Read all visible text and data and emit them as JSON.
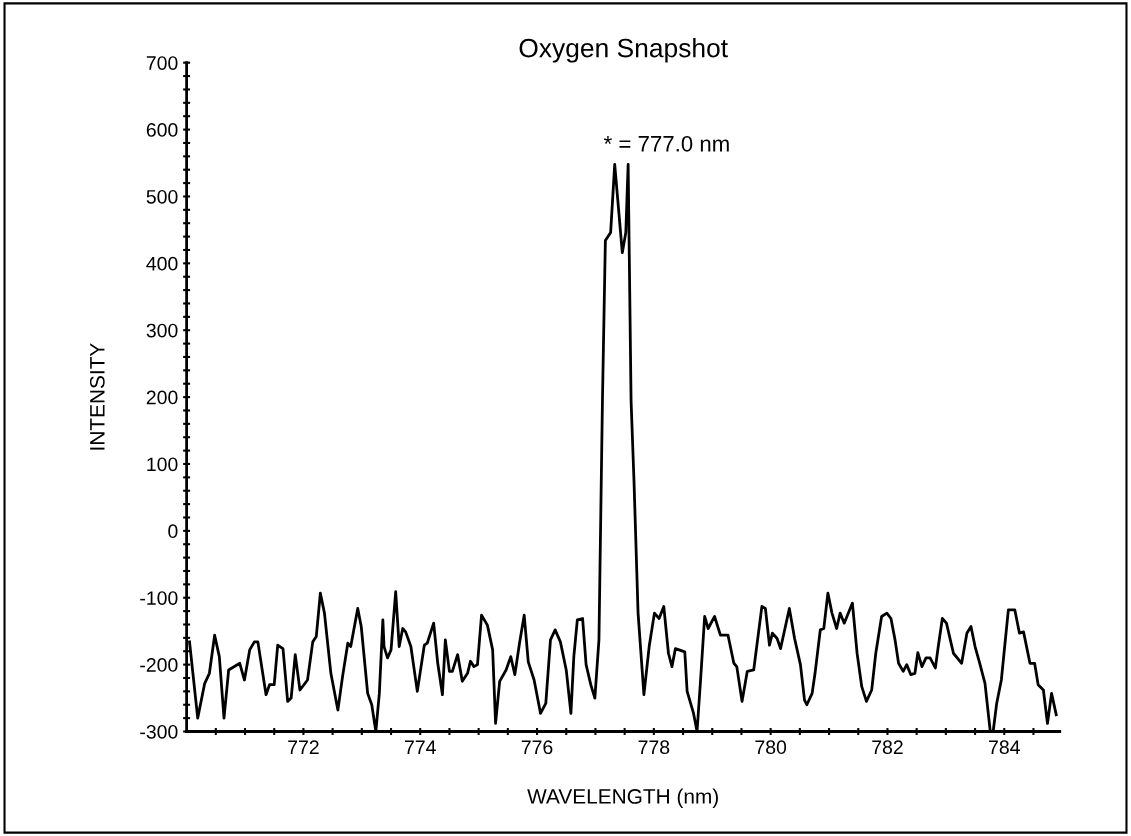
{
  "chart_data": {
    "type": "line",
    "title": "Oxygen Snapshot",
    "xlabel": "WAVELENGTH (nm)",
    "ylabel": "INTENSITY",
    "color": "#000000",
    "grid": false,
    "legend": false,
    "marker": "none",
    "line_style": "solid",
    "xlim": [
      770,
      784.95
    ],
    "ylim": [
      -300,
      700
    ],
    "xticks": [
      {
        "value": 770.5,
        "label": null
      },
      {
        "value": 771,
        "label": null
      },
      {
        "value": 771.5,
        "label": null
      },
      772,
      {
        "value": 772.5,
        "label": null
      },
      {
        "value": 773,
        "label": null
      },
      {
        "value": 773.5,
        "label": null
      },
      774,
      {
        "value": 774.5,
        "label": null
      },
      {
        "value": 775,
        "label": null
      },
      {
        "value": 775.5,
        "label": null
      },
      776,
      {
        "value": 776.5,
        "label": null
      },
      {
        "value": 777,
        "label": null
      },
      {
        "value": 777.5,
        "label": null
      },
      778,
      {
        "value": 778.5,
        "label": null
      },
      {
        "value": 779,
        "label": null
      },
      {
        "value": 779.5,
        "label": null
      },
      780,
      {
        "value": 780.5,
        "label": null
      },
      {
        "value": 781,
        "label": null
      },
      {
        "value": 781.5,
        "label": null
      },
      782,
      {
        "value": 782.5,
        "label": null
      },
      {
        "value": 783,
        "label": null
      },
      {
        "value": 783.5,
        "label": null
      },
      784,
      {
        "value": 784.5,
        "label": null
      }
    ],
    "yticks": [
      -300,
      {
        "value": -280,
        "label": null
      },
      {
        "value": -260,
        "label": null
      },
      {
        "value": -240,
        "label": null
      },
      {
        "value": -220,
        "label": null
      },
      -200,
      {
        "value": -180,
        "label": null
      },
      {
        "value": -160,
        "label": null
      },
      {
        "value": -140,
        "label": null
      },
      {
        "value": -120,
        "label": null
      },
      -100,
      {
        "value": -80,
        "label": null
      },
      {
        "value": -60,
        "label": null
      },
      {
        "value": -40,
        "label": null
      },
      {
        "value": -20,
        "label": null
      },
      0,
      {
        "value": 20,
        "label": null
      },
      {
        "value": 40,
        "label": null
      },
      {
        "value": 60,
        "label": null
      },
      {
        "value": 80,
        "label": null
      },
      100,
      {
        "value": 120,
        "label": null
      },
      {
        "value": 140,
        "label": null
      },
      {
        "value": 160,
        "label": null
      },
      {
        "value": 180,
        "label": null
      },
      200,
      {
        "value": 220,
        "label": null
      },
      {
        "value": 240,
        "label": null
      },
      {
        "value": 260,
        "label": null
      },
      {
        "value": 280,
        "label": null
      },
      300,
      {
        "value": 320,
        "label": null
      },
      {
        "value": 340,
        "label": null
      },
      {
        "value": 360,
        "label": null
      },
      {
        "value": 380,
        "label": null
      },
      400,
      {
        "value": 420,
        "label": null
      },
      {
        "value": 440,
        "label": null
      },
      {
        "value": 460,
        "label": null
      },
      {
        "value": 480,
        "label": null
      },
      500,
      {
        "value": 520,
        "label": null
      },
      {
        "value": 540,
        "label": null
      },
      {
        "value": 560,
        "label": null
      },
      {
        "value": 580,
        "label": null
      },
      600,
      {
        "value": 620,
        "label": null
      },
      {
        "value": 640,
        "label": null
      },
      {
        "value": 660,
        "label": null
      },
      {
        "value": 680,
        "label": null
      },
      700
    ],
    "annotations": [
      {
        "text": "* = 777.0 nm",
        "x": 777.33,
        "y": 548
      }
    ],
    "x": [
      770.05,
      770.19,
      770.31,
      770.39,
      770.48,
      770.56,
      770.64,
      770.72,
      770.91,
      770.99,
      771.08,
      771.16,
      771.22,
      771.36,
      771.42,
      771.5,
      771.56,
      771.65,
      771.73,
      771.79,
      771.86,
      771.94,
      772.07,
      772.16,
      772.22,
      772.29,
      772.36,
      772.47,
      772.59,
      772.67,
      772.76,
      772.81,
      772.93,
      772.99,
      773.1,
      773.17,
      773.24,
      773.3,
      773.36,
      773.38,
      773.44,
      773.5,
      773.58,
      773.64,
      773.7,
      773.75,
      773.84,
      773.95,
      774.07,
      774.12,
      774.23,
      774.3,
      774.38,
      774.43,
      774.5,
      774.55,
      774.64,
      774.72,
      774.81,
      774.86,
      774.92,
      774.98,
      775.05,
      775.15,
      775.24,
      775.29,
      775.36,
      775.47,
      775.55,
      775.62,
      775.7,
      775.78,
      775.85,
      775.95,
      776.06,
      776.15,
      776.23,
      776.31,
      776.4,
      776.5,
      776.58,
      776.63,
      776.69,
      776.78,
      776.84,
      776.92,
      776.99,
      777.06,
      777.12,
      777.17,
      777.26,
      777.33,
      777.46,
      777.52,
      777.56,
      777.61,
      777.66,
      777.73,
      777.83,
      777.92,
      778.01,
      778.09,
      778.17,
      778.25,
      778.31,
      778.37,
      778.53,
      778.57,
      778.68,
      778.74,
      778.8,
      778.87,
      778.93,
      779.04,
      779.14,
      779.27,
      779.37,
      779.42,
      779.51,
      779.6,
      779.71,
      779.85,
      779.91,
      779.98,
      780.03,
      780.11,
      780.17,
      780.32,
      780.41,
      780.51,
      780.58,
      780.62,
      780.71,
      780.76,
      780.85,
      780.91,
      780.98,
      781.05,
      781.13,
      781.19,
      781.26,
      781.4,
      781.48,
      781.56,
      781.64,
      781.73,
      781.8,
      781.9,
      781.99,
      782.06,
      782.13,
      782.19,
      782.27,
      782.33,
      782.4,
      782.47,
      782.52,
      782.59,
      782.66,
      782.73,
      782.82,
      782.87,
      782.94,
      783.01,
      783.13,
      783.27,
      783.36,
      783.43,
      783.5,
      783.58,
      783.67,
      783.76,
      783.81,
      783.87,
      783.95,
      784.07,
      784.18,
      784.26,
      784.33,
      784.44,
      784.52,
      784.58,
      784.67,
      784.74,
      784.81,
      784.89
    ],
    "values": [
      -166,
      -280,
      -228,
      -213,
      -156,
      -188,
      -280,
      -208,
      -198,
      -223,
      -178,
      -166,
      -166,
      -245,
      -230,
      -230,
      -171,
      -176,
      -255,
      -250,
      -185,
      -238,
      -223,
      -166,
      -158,
      -93,
      -123,
      -213,
      -268,
      -218,
      -168,
      -173,
      -116,
      -143,
      -243,
      -260,
      -300,
      -243,
      -133,
      -173,
      -190,
      -178,
      -91,
      -173,
      -146,
      -151,
      -173,
      -240,
      -171,
      -168,
      -138,
      -198,
      -245,
      -163,
      -210,
      -210,
      -185,
      -225,
      -213,
      -195,
      -203,
      -200,
      -126,
      -141,
      -178,
      -288,
      -225,
      -208,
      -188,
      -215,
      -168,
      -126,
      -196,
      -223,
      -273,
      -258,
      -163,
      -148,
      -166,
      -208,
      -273,
      -188,
      -133,
      -131,
      -200,
      -230,
      -250,
      -163,
      195,
      434,
      446,
      548,
      416,
      446,
      548,
      195,
      75,
      -123,
      -245,
      -173,
      -123,
      -131,
      -113,
      -183,
      -203,
      -176,
      -181,
      -240,
      -273,
      -300,
      -223,
      -128,
      -146,
      -128,
      -156,
      -156,
      -198,
      -203,
      -255,
      -210,
      -208,
      -113,
      -116,
      -171,
      -153,
      -161,
      -176,
      -116,
      -161,
      -200,
      -253,
      -260,
      -243,
      -213,
      -148,
      -146,
      -93,
      -123,
      -146,
      -123,
      -138,
      -108,
      -183,
      -233,
      -255,
      -238,
      -183,
      -128,
      -123,
      -131,
      -163,
      -198,
      -210,
      -200,
      -215,
      -213,
      -182,
      -203,
      -190,
      -190,
      -205,
      -173,
      -131,
      -138,
      -183,
      -198,
      -153,
      -143,
      -173,
      -198,
      -228,
      -300,
      -300,
      -258,
      -223,
      -118,
      -118,
      -153,
      -151,
      -198,
      -198,
      -230,
      -238,
      -288,
      -243,
      -275
    ]
  }
}
